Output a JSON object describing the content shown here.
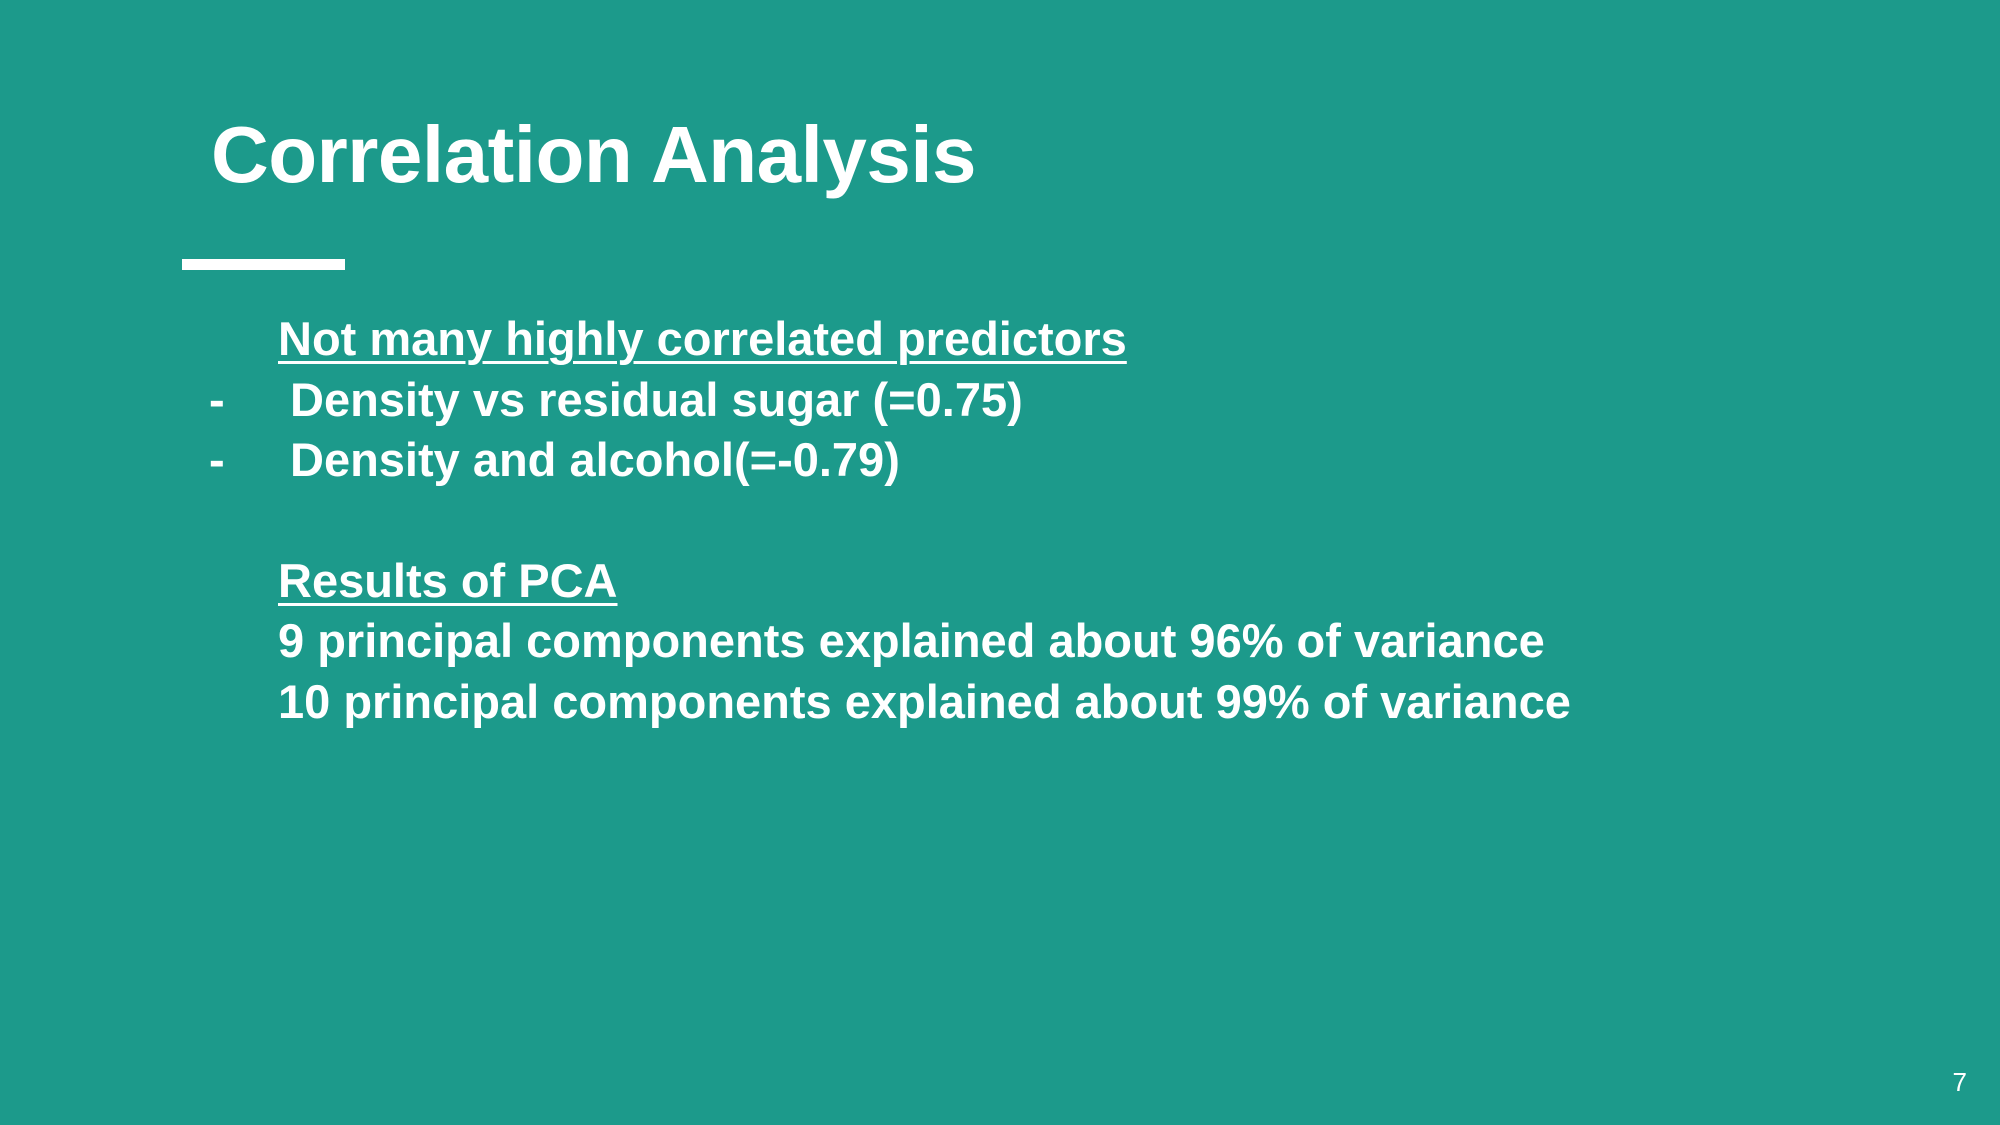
{
  "slide": {
    "title": "Correlation Analysis",
    "section1": {
      "heading": "Not many highly correlated predictors",
      "bullets": [
        {
          "marker": "-",
          "text": "Density vs residual sugar (=0.75)"
        },
        {
          "marker": "-",
          "text": "Density and alcohol(=-0.79)"
        }
      ]
    },
    "section2": {
      "heading": "Results of PCA",
      "lines": [
        "9 principal components explained about 96% of variance",
        "10 principal components explained about 99% of variance"
      ]
    },
    "page_number": "7"
  },
  "colors": {
    "background": "#1c9a8b",
    "text": "#ffffff"
  }
}
